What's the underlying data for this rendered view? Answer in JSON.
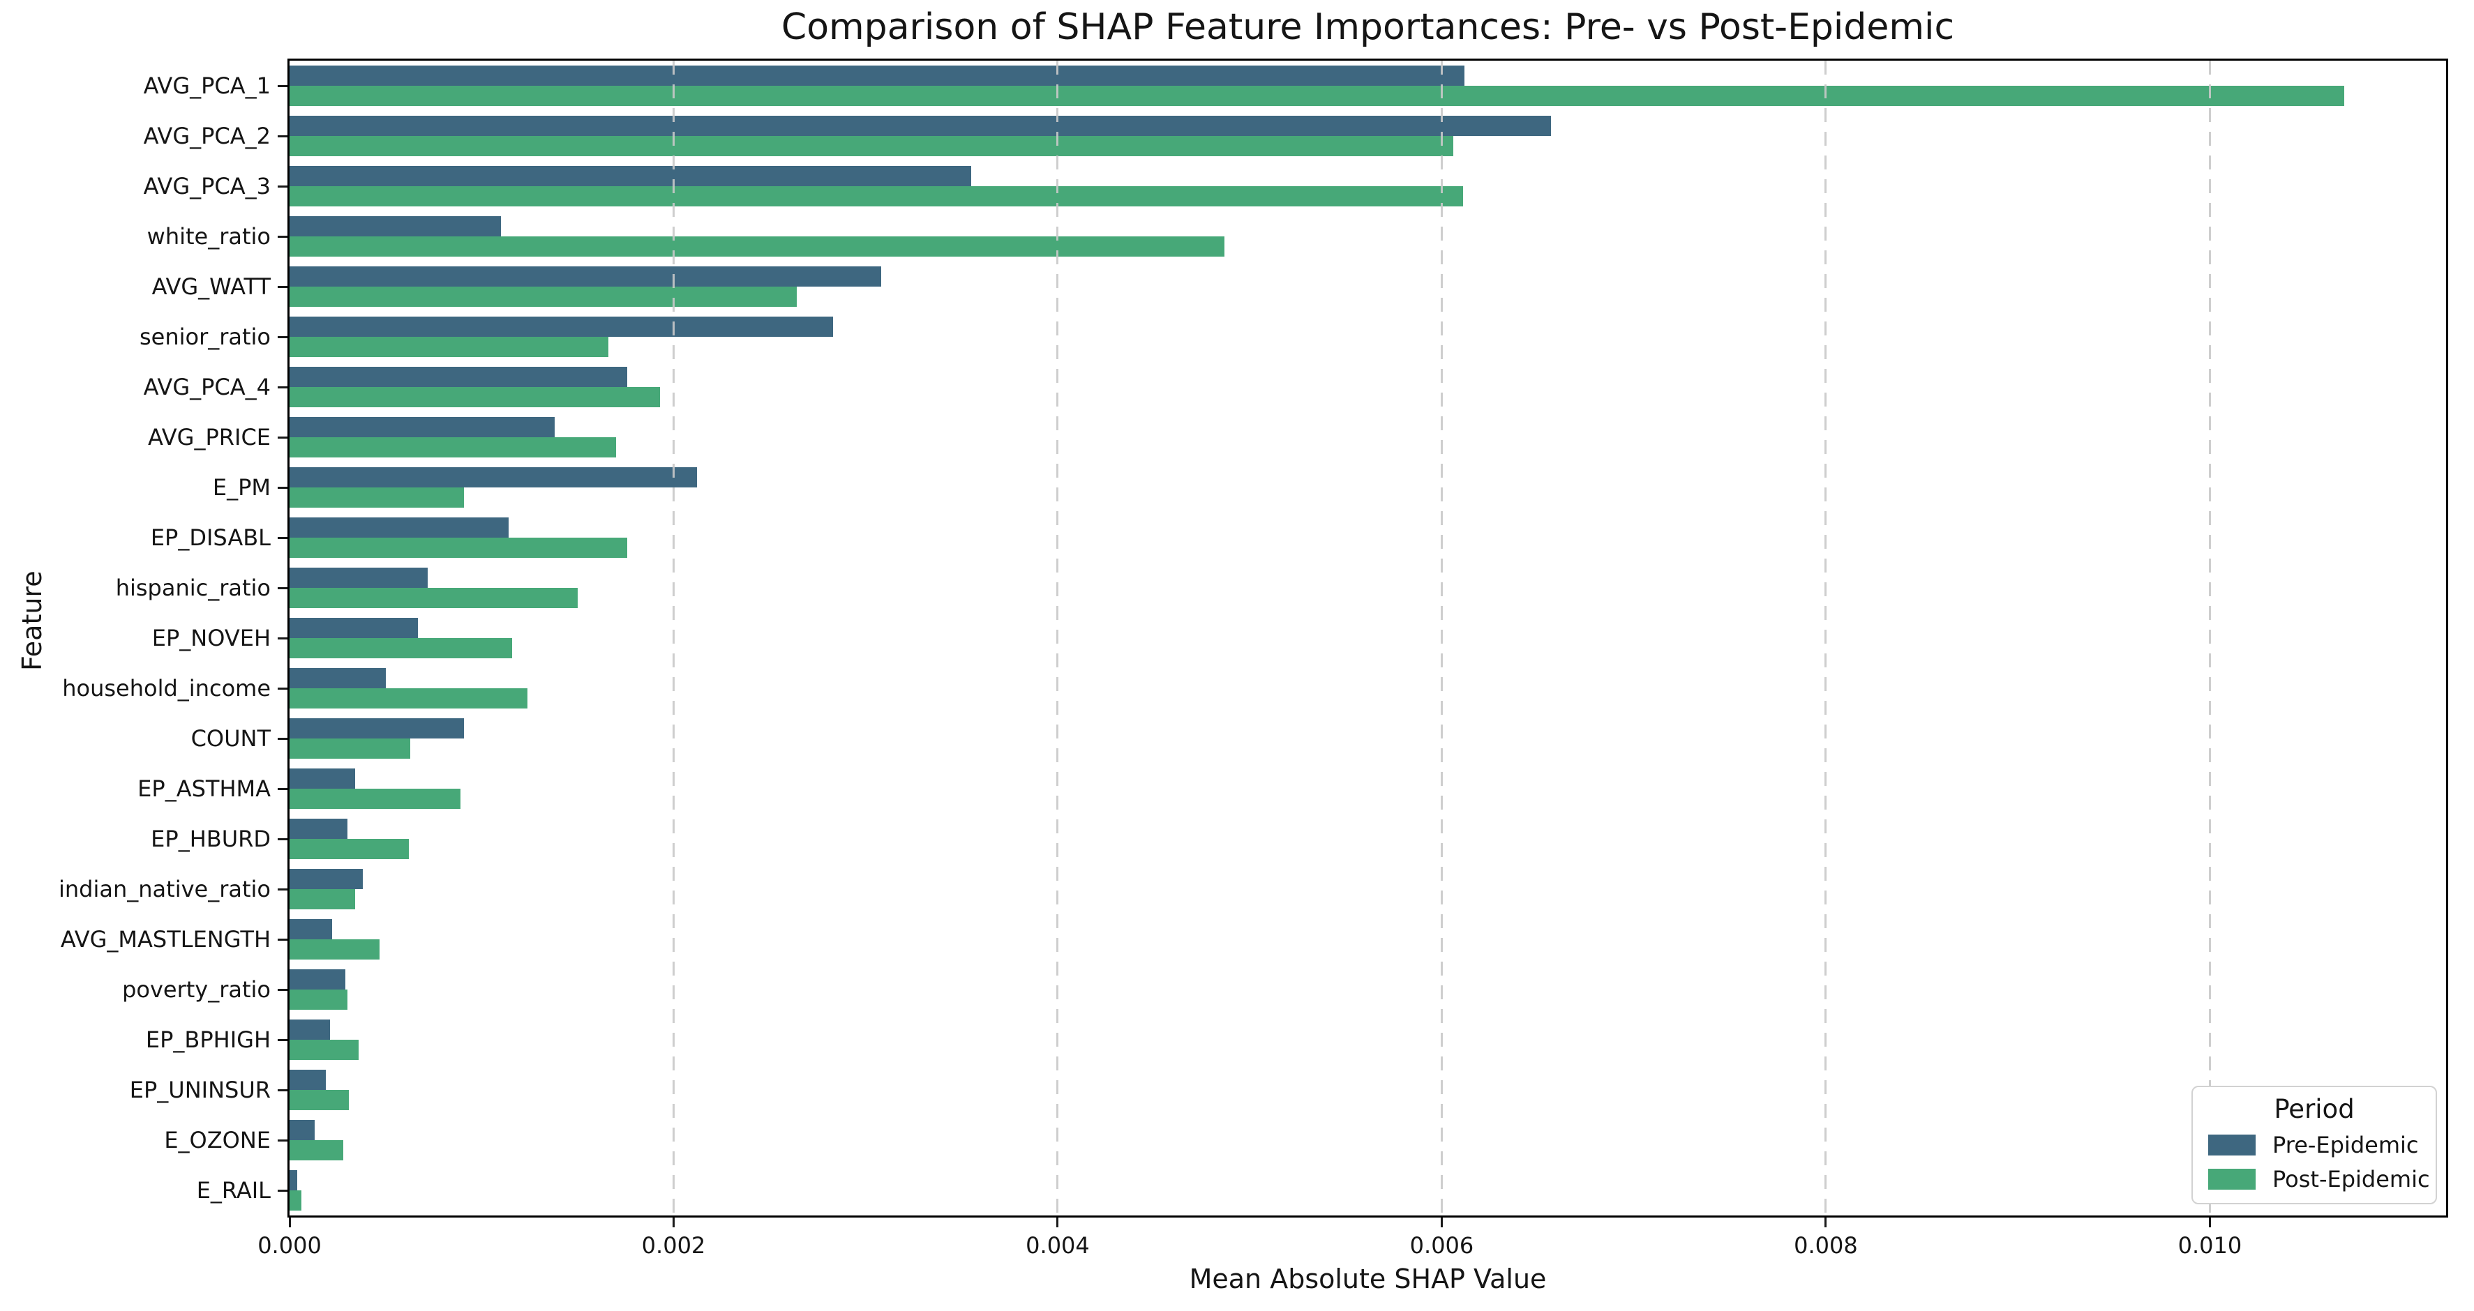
{
  "title": "Comparison of SHAP Feature Importances: Pre- vs Post-Epidemic",
  "axes": {
    "xlabel": "Mean Absolute SHAP Value",
    "ylabel": "Feature"
  },
  "legend": {
    "title": "Period",
    "entries": [
      {
        "label": "Pre-Epidemic",
        "color": "#3e6780"
      },
      {
        "label": "Post-Epidemic",
        "color": "#47a878"
      }
    ]
  },
  "chart_data": {
    "type": "bar",
    "orientation": "horizontal",
    "title": "Comparison of SHAP Feature Importances: Pre- vs Post-Epidemic",
    "xlabel": "Mean Absolute SHAP Value",
    "ylabel": "Feature",
    "xlim": [
      0,
      0.01123
    ],
    "grid": {
      "axis": "x",
      "style": "dashed",
      "color": "#c9c9c9"
    },
    "legend_position": "lower right",
    "x_ticks": [
      {
        "value": 0.0,
        "label": "0.000"
      },
      {
        "value": 0.002,
        "label": "0.002"
      },
      {
        "value": 0.004,
        "label": "0.004"
      },
      {
        "value": 0.006,
        "label": "0.006"
      },
      {
        "value": 0.008,
        "label": "0.008"
      },
      {
        "value": 0.01,
        "label": "0.010"
      }
    ],
    "categories": [
      "AVG_PCA_1",
      "AVG_PCA_2",
      "AVG_PCA_3",
      "white_ratio",
      "AVG_WATT",
      "senior_ratio",
      "AVG_PCA_4",
      "AVG_PRICE",
      "E_PM",
      "EP_DISABL",
      "hispanic_ratio",
      "EP_NOVEH",
      "household_income",
      "COUNT",
      "EP_ASTHMA",
      "EP_HBURD",
      "indian_native_ratio",
      "AVG_MASTLENGTH",
      "poverty_ratio",
      "EP_BPHIGH",
      "EP_UNINSUR",
      "E_OZONE",
      "E_RAIL"
    ],
    "series": [
      {
        "name": "Pre-Epidemic",
        "color": "#3e6780",
        "values": [
          0.00612,
          0.00657,
          0.00355,
          0.0011,
          0.00308,
          0.00283,
          0.00176,
          0.00138,
          0.00212,
          0.00114,
          0.00072,
          0.00067,
          0.0005,
          0.00091,
          0.00034,
          0.0003,
          0.00038,
          0.00022,
          0.00029,
          0.00021,
          0.00019,
          0.00013,
          4e-05
        ]
      },
      {
        "name": "Post-Epidemic",
        "color": "#47a878",
        "values": [
          0.0107,
          0.00606,
          0.00611,
          0.00487,
          0.00264,
          0.00166,
          0.00193,
          0.0017,
          0.00091,
          0.00176,
          0.0015,
          0.00116,
          0.00124,
          0.00063,
          0.00089,
          0.00062,
          0.00034,
          0.00047,
          0.0003,
          0.00036,
          0.00031,
          0.00028,
          6e-05
        ]
      }
    ]
  }
}
